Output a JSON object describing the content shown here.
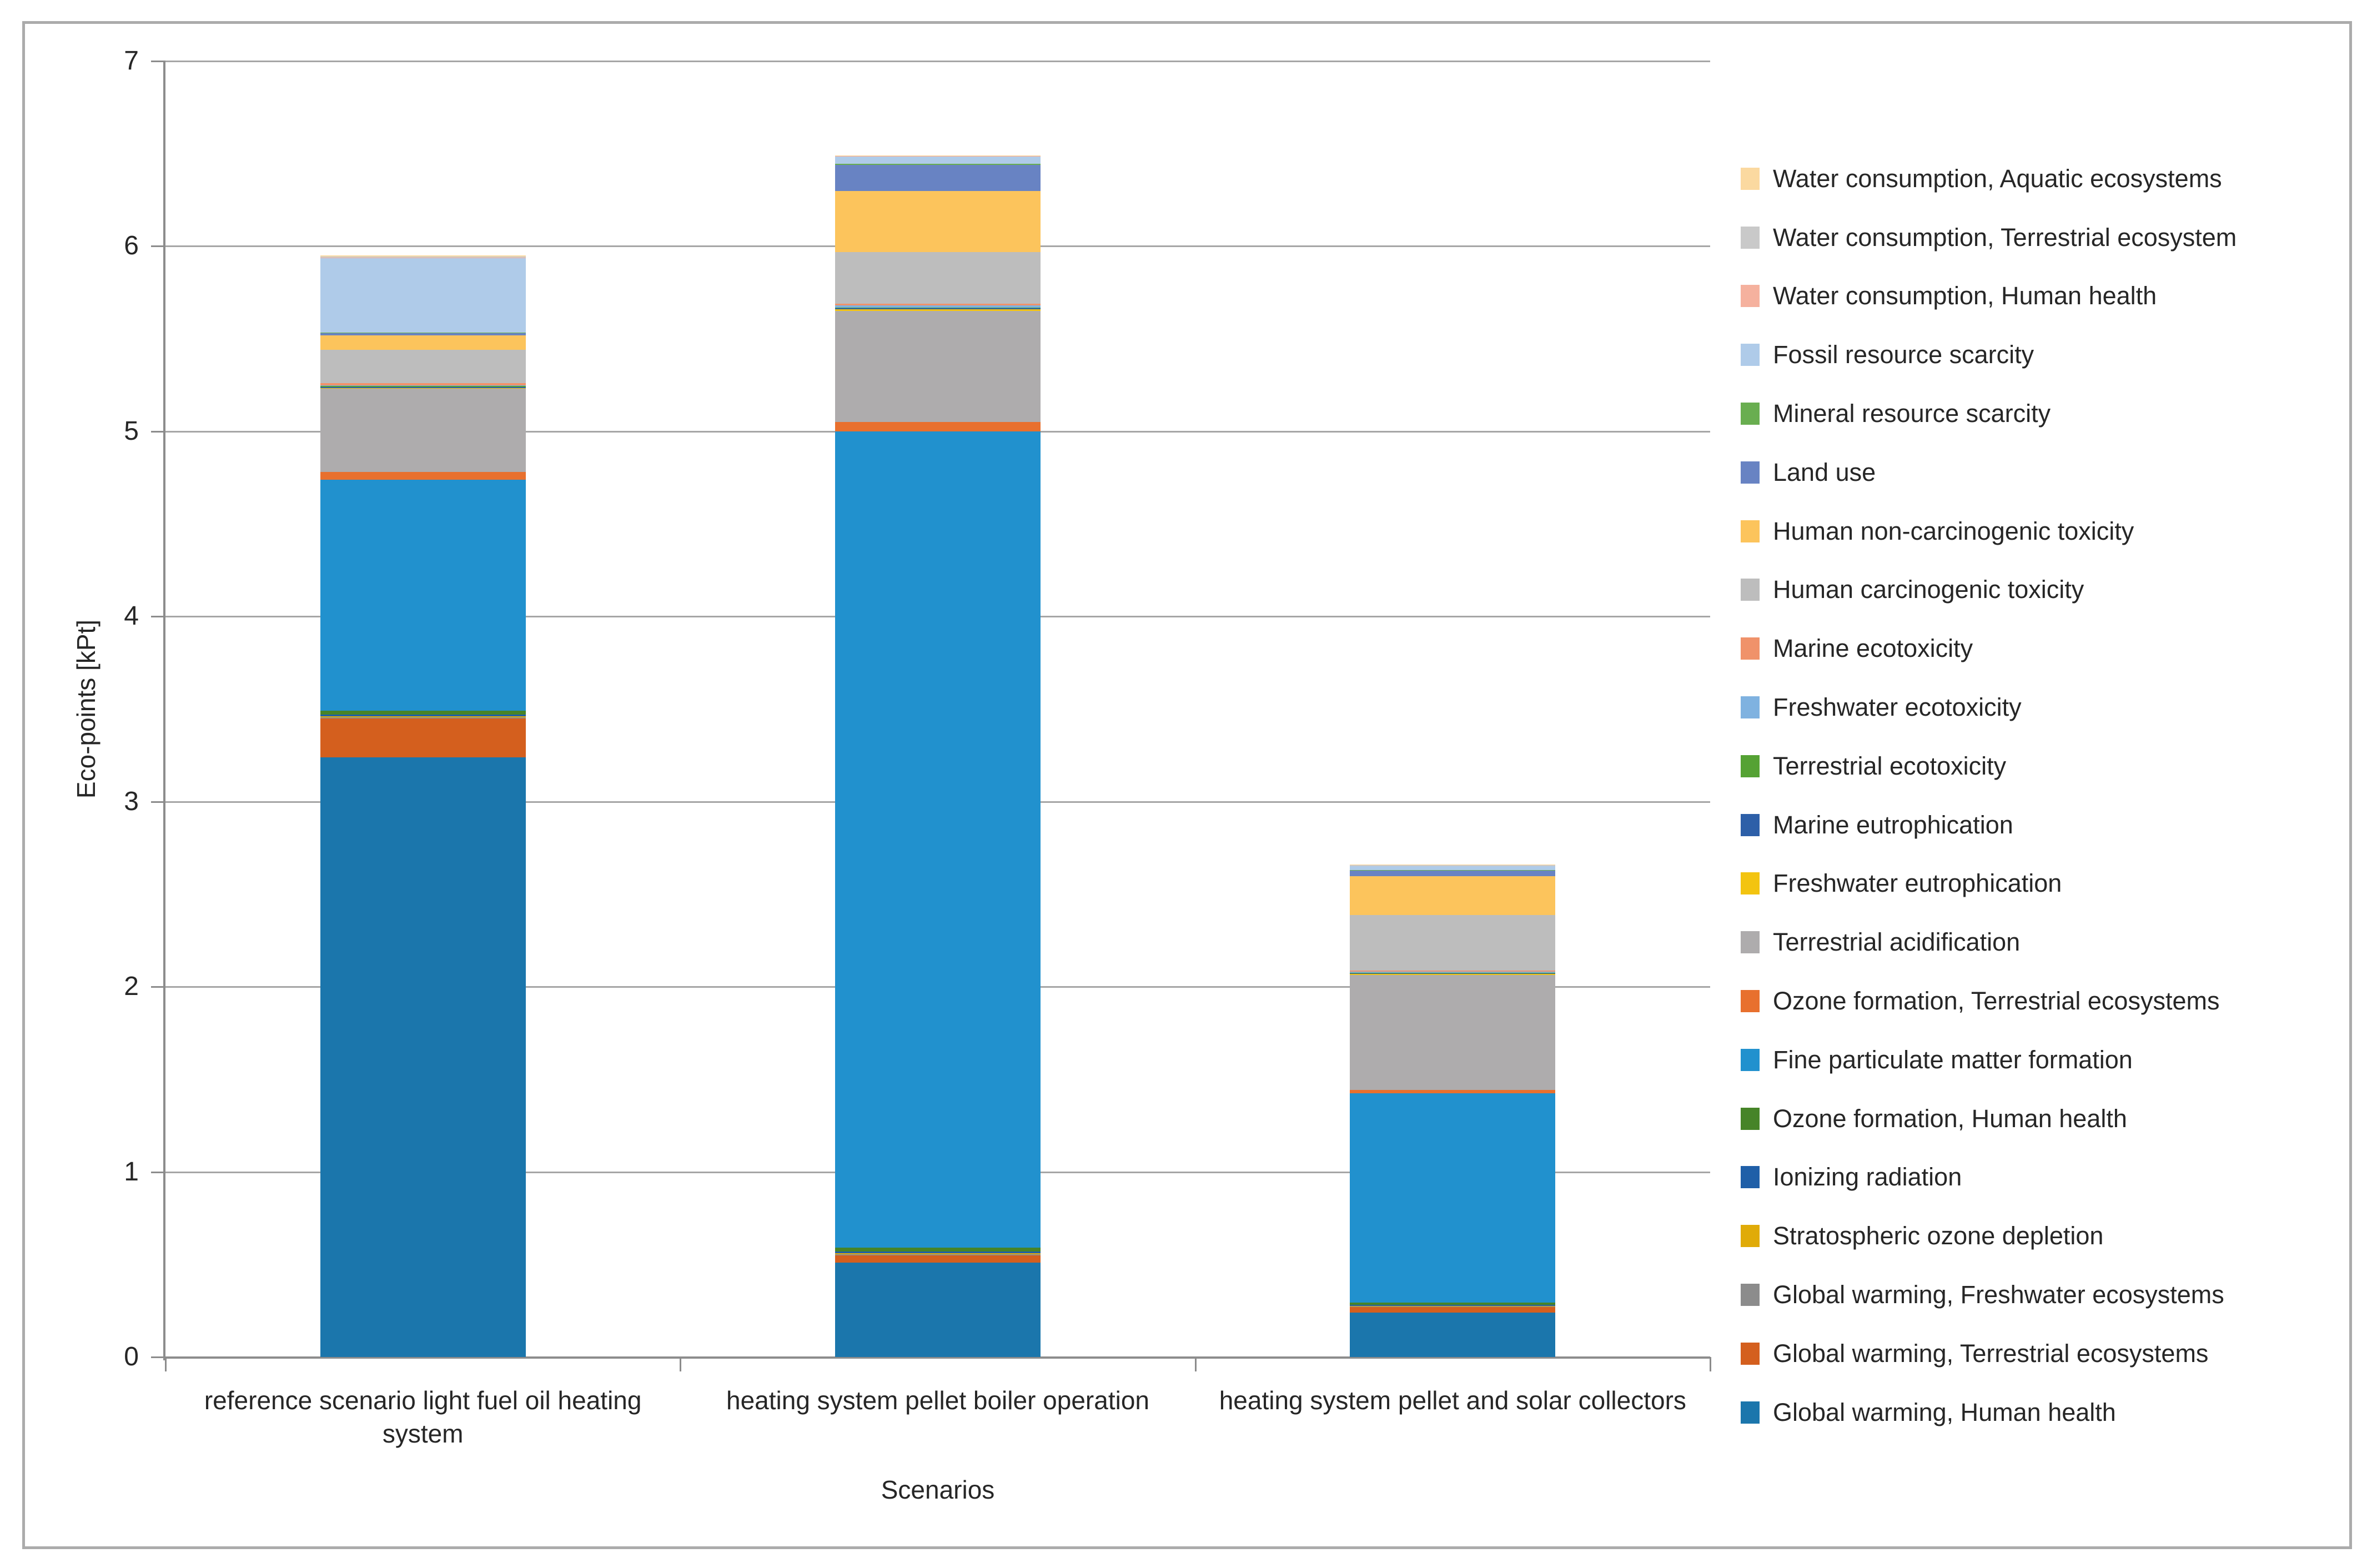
{
  "figure": {
    "y_axis_title": "Eco-points [kPt]",
    "x_axis_title": "Scenarios",
    "border_color": "#ABABAB",
    "gridline_color": "#A6A6A6",
    "axis_line_color": "#8C8C8C"
  },
  "chart_data": {
    "type": "bar",
    "stacked": true,
    "title": "",
    "xlabel": "Scenarios",
    "ylabel": "Eco-points [kPt]",
    "ylim": [
      0,
      7
    ],
    "y_ticks": [
      0,
      1,
      2,
      3,
      4,
      5,
      6,
      7
    ],
    "grid": true,
    "legend_position": "right",
    "legend_note": "legend lists series top-of-stack first (reverse of stacking order)",
    "categories": [
      "reference scenario light fuel oil heating system",
      "heating system pellet boiler operation",
      "heating system pellet and solar collectors"
    ],
    "series": [
      {
        "name": "Global warming, Human health",
        "color": "#1B76AC",
        "values": [
          3.24,
          0.51,
          0.24
        ]
      },
      {
        "name": "Global warming, Terrestrial ecosystems",
        "color": "#D45F1E",
        "values": [
          0.21,
          0.04,
          0.03
        ]
      },
      {
        "name": "Global warming, Freshwater ecosystems",
        "color": "#8C8C8C",
        "values": [
          0.005,
          0.005,
          0.003
        ]
      },
      {
        "name": "Stratospheric ozone depletion",
        "color": "#E0AB08",
        "values": [
          0.005,
          0.005,
          0.003
        ]
      },
      {
        "name": "Ionizing radiation",
        "color": "#1F5FA8",
        "values": [
          0.01,
          0.01,
          0.006
        ]
      },
      {
        "name": "Ozone formation, Human health",
        "color": "#468428",
        "values": [
          0.02,
          0.02,
          0.012
        ]
      },
      {
        "name": "Fine particulate matter formation",
        "color": "#2191CE",
        "values": [
          1.25,
          4.41,
          1.13
        ]
      },
      {
        "name": "Ozone formation, Terrestrial ecosystems",
        "color": "#E8702E",
        "values": [
          0.04,
          0.05,
          0.02
        ]
      },
      {
        "name": "Terrestrial acidification",
        "color": "#AEACAD",
        "values": [
          0.45,
          0.6,
          0.62
        ]
      },
      {
        "name": "Freshwater eutrophication",
        "color": "#F3C410",
        "values": [
          0.005,
          0.01,
          0.006
        ]
      },
      {
        "name": "Marine eutrophication",
        "color": "#2D5FA8",
        "values": [
          0.005,
          0.005,
          0.003
        ]
      },
      {
        "name": "Terrestrial ecotoxicity",
        "color": "#55A234",
        "values": [
          0.005,
          0.005,
          0.003
        ]
      },
      {
        "name": "Freshwater ecotoxicity",
        "color": "#7FB2E0",
        "values": [
          0.005,
          0.01,
          0.006
        ]
      },
      {
        "name": "Marine ecotoxicity",
        "color": "#F0926A",
        "values": [
          0.01,
          0.01,
          0.006
        ]
      },
      {
        "name": "Human carcinogenic toxicity",
        "color": "#BDBDBD",
        "values": [
          0.18,
          0.28,
          0.3
        ]
      },
      {
        "name": "Human non-carcinogenic toxicity",
        "color": "#FCC45C",
        "values": [
          0.08,
          0.33,
          0.21
        ]
      },
      {
        "name": "Land use",
        "color": "#6883C3",
        "values": [
          0.01,
          0.14,
          0.03
        ]
      },
      {
        "name": "Mineral resource scarcity",
        "color": "#69AE50",
        "values": [
          0.005,
          0.005,
          0.003
        ]
      },
      {
        "name": "Fossil resource scarcity",
        "color": "#AFCBE9",
        "values": [
          0.4,
          0.04,
          0.02
        ]
      },
      {
        "name": "Water consumption, Human health",
        "color": "#F5B19E",
        "values": [
          0.005,
          0.002,
          0.002
        ]
      },
      {
        "name": "Water consumption, Terrestrial ecosystem",
        "color": "#C9C9C9",
        "values": [
          0.005,
          0.002,
          0.005
        ]
      },
      {
        "name": "Water consumption, Aquatic ecosystems",
        "color": "#FBD9A0",
        "values": [
          0.005,
          0.002,
          0.002
        ]
      }
    ]
  }
}
